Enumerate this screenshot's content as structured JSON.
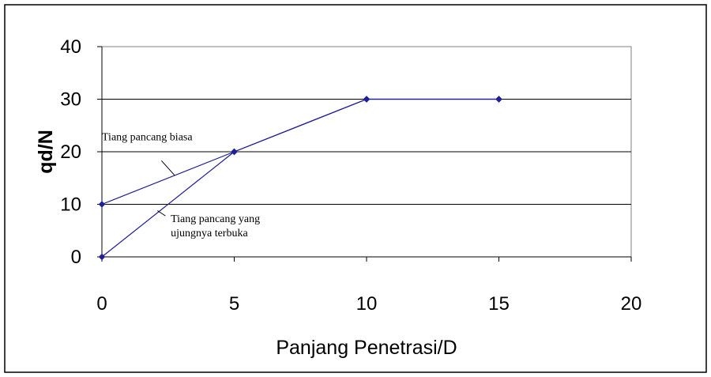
{
  "chart_data": {
    "type": "line",
    "xlabel": "Panjang Penetrasi/D",
    "ylabel": "qd/N",
    "xlim": [
      0,
      20
    ],
    "ylim": [
      0,
      40
    ],
    "x_ticks": [
      "0",
      "5",
      "10",
      "15",
      "20"
    ],
    "y_ticks": [
      "0",
      "10",
      "20",
      "30",
      "40"
    ],
    "grid": "horizontal major gridlines",
    "line_color": "#1f1f9a",
    "series": [
      {
        "name": "Tiang pancang biasa",
        "points": [
          [
            0,
            10
          ],
          [
            5,
            20
          ],
          [
            10,
            30
          ],
          [
            15,
            30
          ]
        ]
      },
      {
        "name": "Tiang pancang yang ujungnya terbuka",
        "points": [
          [
            0,
            0
          ],
          [
            5,
            20
          ],
          [
            10,
            30
          ],
          [
            15,
            30
          ]
        ]
      }
    ],
    "annotations": [
      {
        "lines": [
          "Tiang pancang biasa"
        ],
        "target_series": 0,
        "text_at": [
          0,
          22.2
        ],
        "arrow_from": [
          2.25,
          18.3
        ],
        "arrow_to": [
          2.75,
          15.5
        ]
      },
      {
        "lines": [
          "Tiang pancang yang",
          "ujungnya terbuka"
        ],
        "target_series": 1,
        "text_at": [
          2.6,
          6.6
        ],
        "arrow_from": [
          2.4,
          7.8
        ],
        "arrow_to": [
          2.1,
          8.8
        ]
      }
    ]
  }
}
